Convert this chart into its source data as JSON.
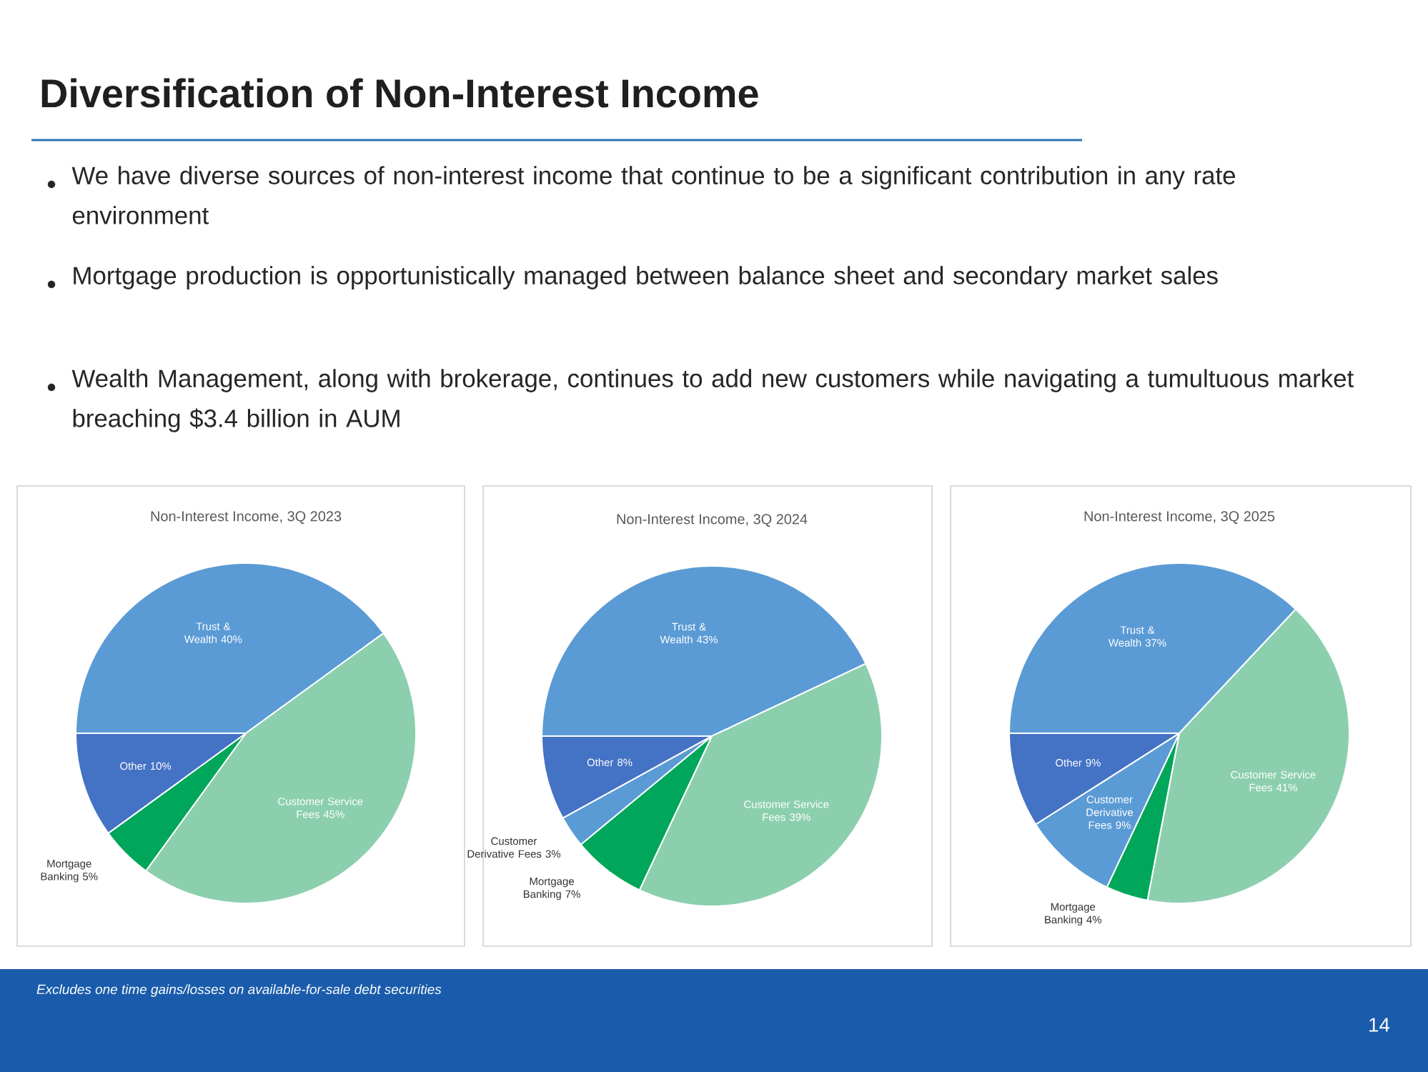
{
  "chart_data": [
    {
      "type": "other",
      "title": "Diversification of Non-Interest Income",
      "annotations": [
        "We have diverse sources of non-interest income that continue to be a significant contribution in any rate environment",
        "Mortgage production is opportunistically managed between balance sheet and secondary market sales",
        "Wealth Management, along with brokerage, continues to add new customers while navigating a tumultuous market breaching $3.4 billion in AUM",
        "Excludes one time gains/losses on available-for-sale debt securities",
        "14"
      ]
    },
    {
      "type": "pie",
      "title": "Non-Interest Income, 3Q 2023",
      "categories": [
        "Trust & Wealth",
        "Customer Service Fees",
        "Mortgage Banking",
        "Other"
      ],
      "values": [
        40,
        45,
        5,
        10
      ],
      "value_labels": [
        "40%",
        "45%",
        "5%",
        "10%"
      ],
      "colors": [
        "#5b9bd5",
        "#8ccfae",
        "#00a65a",
        "#4472c4"
      ]
    },
    {
      "type": "pie",
      "title": "Non-Interest Income, 3Q 2024",
      "categories": [
        "Trust & Wealth",
        "Customer Service Fees",
        "Mortgage Banking",
        "Customer Derivative Fees",
        "Other"
      ],
      "values": [
        43,
        39,
        7,
        3,
        8
      ],
      "value_labels": [
        "43%",
        "39%",
        "7%",
        "3%",
        "8%"
      ],
      "colors": [
        "#5b9bd5",
        "#8ccfae",
        "#00a65a",
        "#5b9bd5",
        "#4472c4"
      ]
    },
    {
      "type": "pie",
      "title": "Non-Interest Income, 3Q 2025",
      "categories": [
        "Trust & Wealth",
        "Customer Service Fees",
        "Mortgage Banking",
        "Customer Derivative Fees",
        "Other"
      ],
      "values": [
        37,
        41,
        4,
        9,
        9
      ],
      "value_labels": [
        "37%",
        "41%",
        "4%",
        "9%",
        "9%"
      ],
      "colors": [
        "#5b9bd5",
        "#8ccfae",
        "#00a65a",
        "#5b9bd5",
        "#4472c4"
      ]
    }
  ]
}
